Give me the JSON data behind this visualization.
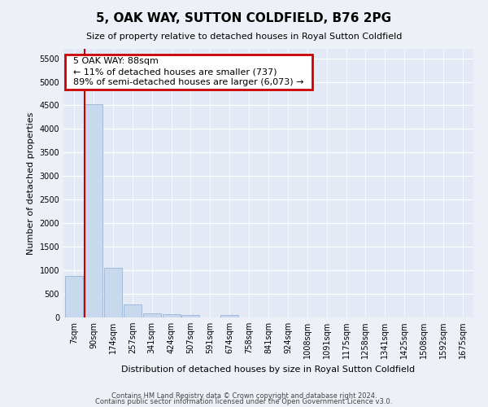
{
  "title1": "5, OAK WAY, SUTTON COLDFIELD, B76 2PG",
  "title2": "Size of property relative to detached houses in Royal Sutton Coldfield",
  "xlabel": "Distribution of detached houses by size in Royal Sutton Coldfield",
  "ylabel": "Number of detached properties",
  "footer1": "Contains HM Land Registry data © Crown copyright and database right 2024.",
  "footer2": "Contains public sector information licensed under the Open Government Licence v3.0.",
  "bar_labels": [
    "7sqm",
    "90sqm",
    "174sqm",
    "257sqm",
    "341sqm",
    "424sqm",
    "507sqm",
    "591sqm",
    "674sqm",
    "758sqm",
    "841sqm",
    "924sqm",
    "1008sqm",
    "1091sqm",
    "1175sqm",
    "1258sqm",
    "1341sqm",
    "1425sqm",
    "1508sqm",
    "1592sqm",
    "1675sqm"
  ],
  "bar_values": [
    880,
    4520,
    1060,
    280,
    90,
    70,
    55,
    0,
    55,
    0,
    0,
    0,
    0,
    0,
    0,
    0,
    0,
    0,
    0,
    0,
    0
  ],
  "bar_color": "#c8d8ed",
  "bar_edge_color": "#9ab4d4",
  "red_line_color": "#cc0000",
  "annotation_title": "5 OAK WAY: 88sqm",
  "annotation_line1": "← 11% of detached houses are smaller (737)",
  "annotation_line2": "89% of semi-detached houses are larger (6,073) →",
  "annotation_box_color": "#ffffff",
  "annotation_border_color": "#cc0000",
  "ylim": [
    0,
    5700
  ],
  "yticks": [
    0,
    500,
    1000,
    1500,
    2000,
    2500,
    3000,
    3500,
    4000,
    4500,
    5000,
    5500
  ],
  "background_color": "#edf1f7",
  "plot_background": "#e4eaf5",
  "title1_fontsize": 11,
  "title2_fontsize": 8,
  "ylabel_fontsize": 8,
  "xlabel_fontsize": 8,
  "tick_fontsize": 7,
  "footer_fontsize": 6
}
